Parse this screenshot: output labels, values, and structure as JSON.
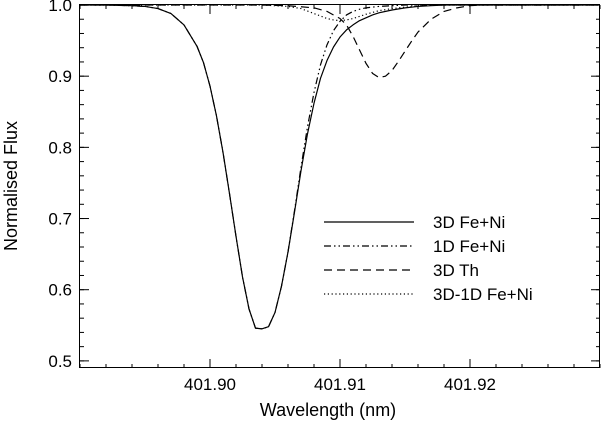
{
  "chart_data": {
    "type": "line",
    "title": "",
    "xlabel": "Wavelength (nm)",
    "ylabel": "Normalised Flux",
    "xlim": [
      401.89,
      401.93
    ],
    "ylim": [
      0.49,
      1.0
    ],
    "xticks": [
      {
        "value": 401.9,
        "label": "401.90"
      },
      {
        "value": 401.91,
        "label": "401.91"
      },
      {
        "value": 401.92,
        "label": "401.92"
      }
    ],
    "yticks": [
      {
        "value": 0.5,
        "label": "0.5"
      },
      {
        "value": 0.6,
        "label": "0.6"
      },
      {
        "value": 0.7,
        "label": "0.7"
      },
      {
        "value": 0.8,
        "label": "0.8"
      },
      {
        "value": 0.9,
        "label": "0.9"
      },
      {
        "value": 1.0,
        "label": "1.0"
      }
    ],
    "grid": false,
    "legend_position": "center-right",
    "series": [
      {
        "name": "3D Fe+Ni",
        "dash": "solid",
        "color": "#000000",
        "x": [
          401.89,
          401.892,
          401.894,
          401.895,
          401.896,
          401.897,
          401.898,
          401.899,
          401.8995,
          401.9,
          401.9005,
          401.901,
          401.9015,
          401.902,
          401.9025,
          401.903,
          401.9035,
          401.904,
          401.9045,
          401.905,
          401.9055,
          401.906,
          401.9065,
          401.907,
          401.9075,
          401.908,
          401.9085,
          401.909,
          401.9095,
          401.91,
          401.9105,
          401.911,
          401.9115,
          401.912,
          401.9125,
          401.913,
          401.914,
          401.915,
          401.916,
          401.917,
          401.918,
          401.919,
          401.92,
          401.922,
          401.924,
          401.926,
          401.928,
          401.93
        ],
        "y": [
          1.0,
          1.0,
          0.999,
          0.998,
          0.995,
          0.988,
          0.972,
          0.942,
          0.919,
          0.886,
          0.844,
          0.793,
          0.735,
          0.675,
          0.618,
          0.573,
          0.546,
          0.545,
          0.548,
          0.568,
          0.605,
          0.653,
          0.709,
          0.767,
          0.819,
          0.862,
          0.897,
          0.922,
          0.941,
          0.955,
          0.965,
          0.972,
          0.978,
          0.982,
          0.986,
          0.989,
          0.993,
          0.996,
          0.998,
          0.999,
          1.0,
          1.0,
          1.0,
          1.0,
          1.0,
          1.0,
          1.0,
          1.0
        ]
      },
      {
        "name": "1D Fe+Ni",
        "dash": "dash-dot-dot",
        "color": "#000000",
        "x": [
          401.89,
          401.892,
          401.894,
          401.895,
          401.896,
          401.897,
          401.898,
          401.899,
          401.8995,
          401.9,
          401.9005,
          401.901,
          401.9015,
          401.902,
          401.9025,
          401.903,
          401.9035,
          401.904,
          401.9045,
          401.905,
          401.9055,
          401.906,
          401.9065,
          401.907,
          401.9075,
          401.908,
          401.9085,
          401.909,
          401.9095,
          401.91,
          401.9105,
          401.911,
          401.9115,
          401.912,
          401.9125,
          401.913,
          401.914,
          401.915,
          401.916,
          401.917,
          401.918,
          401.919,
          401.92,
          401.922,
          401.924,
          401.926,
          401.928,
          401.93
        ],
        "y": [
          1.0,
          1.0,
          0.999,
          0.998,
          0.995,
          0.988,
          0.972,
          0.942,
          0.919,
          0.886,
          0.844,
          0.793,
          0.735,
          0.675,
          0.618,
          0.573,
          0.546,
          0.545,
          0.548,
          0.568,
          0.605,
          0.653,
          0.711,
          0.772,
          0.829,
          0.877,
          0.916,
          0.944,
          0.964,
          0.977,
          0.986,
          0.991,
          0.994,
          0.996,
          0.997,
          0.998,
          0.999,
          1.0,
          1.0,
          1.0,
          1.0,
          1.0,
          1.0,
          1.0,
          1.0,
          1.0,
          1.0,
          1.0
        ]
      },
      {
        "name": "3D Th",
        "dash": "dashed",
        "color": "#000000",
        "x": [
          401.89,
          401.894,
          401.898,
          401.9,
          401.902,
          401.904,
          401.906,
          401.908,
          401.909,
          401.91,
          401.9105,
          401.911,
          401.9115,
          401.912,
          401.9125,
          401.913,
          401.9135,
          401.914,
          401.9145,
          401.915,
          401.9155,
          401.916,
          401.917,
          401.918,
          401.919,
          401.92,
          401.921,
          401.922,
          401.924,
          401.926,
          401.928,
          401.93
        ],
        "y": [
          1.0,
          1.0,
          1.0,
          1.0,
          1.0,
          1.0,
          0.999,
          0.996,
          0.991,
          0.981,
          0.972,
          0.956,
          0.937,
          0.918,
          0.904,
          0.898,
          0.9,
          0.908,
          0.921,
          0.935,
          0.949,
          0.962,
          0.98,
          0.991,
          0.996,
          0.999,
          1.0,
          1.0,
          1.0,
          1.0,
          1.0,
          1.0
        ]
      },
      {
        "name": "3D-1D Fe+Ni",
        "dash": "dotted",
        "color": "#000000",
        "x": [
          401.89,
          401.894,
          401.898,
          401.9,
          401.904,
          401.906,
          401.907,
          401.908,
          401.909,
          401.9095,
          401.91,
          401.9105,
          401.911,
          401.9115,
          401.912,
          401.913,
          401.914,
          401.915,
          401.916,
          401.918,
          401.92,
          401.924,
          401.93
        ],
        "y": [
          1.0,
          1.0,
          1.0,
          1.0,
          1.0,
          0.998,
          0.995,
          0.988,
          0.981,
          0.979,
          0.978,
          0.979,
          0.981,
          0.984,
          0.987,
          0.992,
          0.995,
          0.997,
          0.999,
          1.0,
          1.0,
          1.0,
          1.0
        ]
      }
    ]
  }
}
